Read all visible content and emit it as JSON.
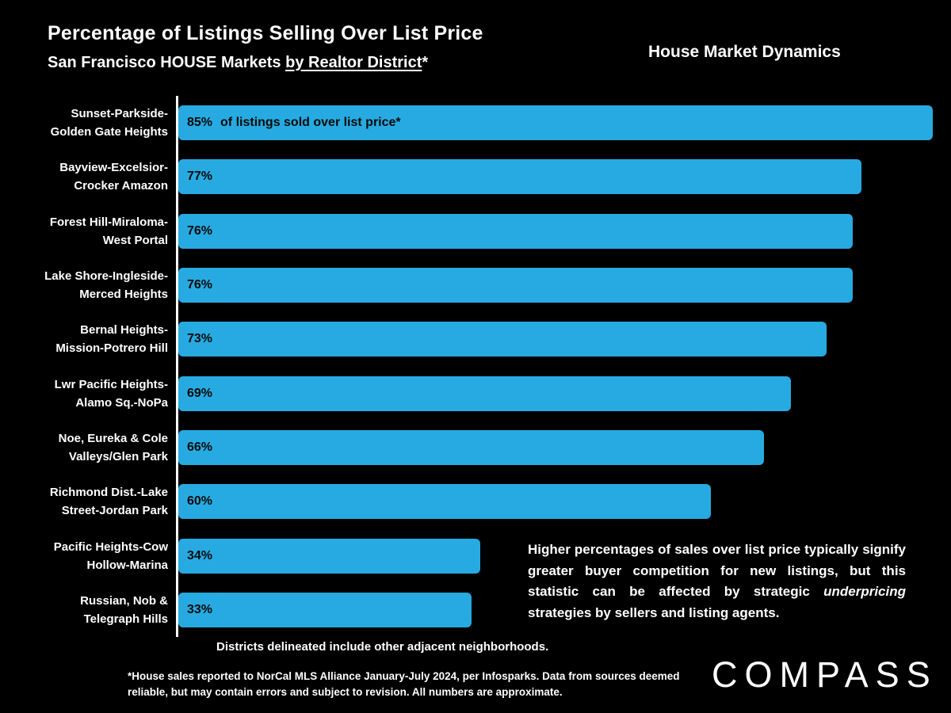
{
  "header": {
    "title": "Percentage of Listings Selling Over List Price",
    "subtitle_prefix": "San Francisco HOUSE Markets ",
    "subtitle_underlined": "by Realtor District",
    "subtitle_suffix": "*",
    "brand_tag": "House Market Dynamics"
  },
  "chart_data": {
    "type": "bar",
    "orientation": "horizontal",
    "title": "Percentage of Listings Selling Over List Price",
    "subtitle": "San Francisco HOUSE Markets by Realtor District*",
    "xlabel": "",
    "ylabel": "",
    "xlim": [
      0,
      85
    ],
    "grid": false,
    "legend": false,
    "bar_color": "#27aae1",
    "categories": [
      "Sunset-Parkside-Golden Gate Heights",
      "Bayview-Excelsior-Crocker Amazon",
      "Forest Hill-Miraloma-West Portal",
      "Lake Shore-Ingleside-Merced Heights",
      "Bernal Heights-Mission-Potrero Hill",
      "Lwr Pacific Heights-Alamo Sq.-NoPa",
      "Noe, Eureka & Cole Valleys/Glen Park",
      "Richmond Dist.-Lake Street-Jordan Park",
      "Pacific Heights-Cow Hollow-Marina",
      "Russian, Nob & Telegraph Hills"
    ],
    "values": [
      85,
      77,
      76,
      76,
      73,
      69,
      66,
      60,
      34,
      33
    ],
    "rows": [
      {
        "label1": "Sunset-Parkside-",
        "label2": "Golden Gate Heights",
        "value": 85,
        "value_label": "85%",
        "bar_text": "of listings sold over list price*"
      },
      {
        "label1": "Bayview-Excelsior-",
        "label2": "Crocker Amazon",
        "value": 77,
        "value_label": "77%",
        "bar_text": ""
      },
      {
        "label1": "Forest Hill-Miraloma-",
        "label2": "West Portal",
        "value": 76,
        "value_label": "76%",
        "bar_text": ""
      },
      {
        "label1": "Lake Shore-Ingleside-",
        "label2": "Merced Heights",
        "value": 76,
        "value_label": "76%",
        "bar_text": ""
      },
      {
        "label1": "Bernal Heights-",
        "label2": "Mission-Potrero Hill",
        "value": 73,
        "value_label": "73%",
        "bar_text": ""
      },
      {
        "label1": "Lwr Pacific Heights-",
        "label2": "Alamo Sq.-NoPa",
        "value": 69,
        "value_label": "69%",
        "bar_text": ""
      },
      {
        "label1": "Noe, Eureka & Cole",
        "label2": "Valleys/Glen Park",
        "value": 66,
        "value_label": "66%",
        "bar_text": ""
      },
      {
        "label1": "Richmond Dist.-Lake",
        "label2": "Street-Jordan Park",
        "value": 60,
        "value_label": "60%",
        "bar_text": ""
      },
      {
        "label1": "Pacific Heights-Cow",
        "label2": "Hollow-Marina",
        "value": 34,
        "value_label": "34%",
        "bar_text": ""
      },
      {
        "label1": "Russian, Nob &",
        "label2": "Telegraph Hills",
        "value": 33,
        "value_label": "33%",
        "bar_text": ""
      }
    ]
  },
  "annotation": {
    "part1": "Higher percentages of sales over list price typically signify greater buyer competition for new listings, but this statistic can be affected by strategic ",
    "italic_word": "underpricing",
    "part2": " strategies by sellers and listing agents."
  },
  "notes": {
    "districts_note": "Districts delineated include other adjacent neighborhoods.",
    "footnote": "*House sales reported to NorCal MLS Alliance January-July 2024, per Infosparks. Data from sources deemed reliable, but may contain errors and subject to revision. All numbers are approximate."
  },
  "brand": {
    "logo_text": "COMPASS"
  }
}
